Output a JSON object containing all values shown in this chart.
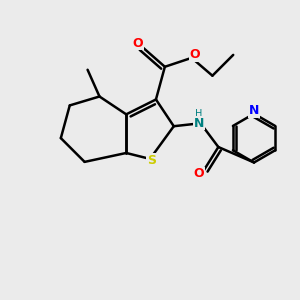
{
  "background_color": "#ebebeb",
  "bond_color": "#000000",
  "S_color": "#cccc00",
  "N_color": "#0000ff",
  "O_color": "#ff0000",
  "teal_N_color": "#008080",
  "figsize": [
    3.0,
    3.0
  ],
  "dpi": 100,
  "xlim": [
    0,
    10
  ],
  "ylim": [
    0,
    10
  ]
}
